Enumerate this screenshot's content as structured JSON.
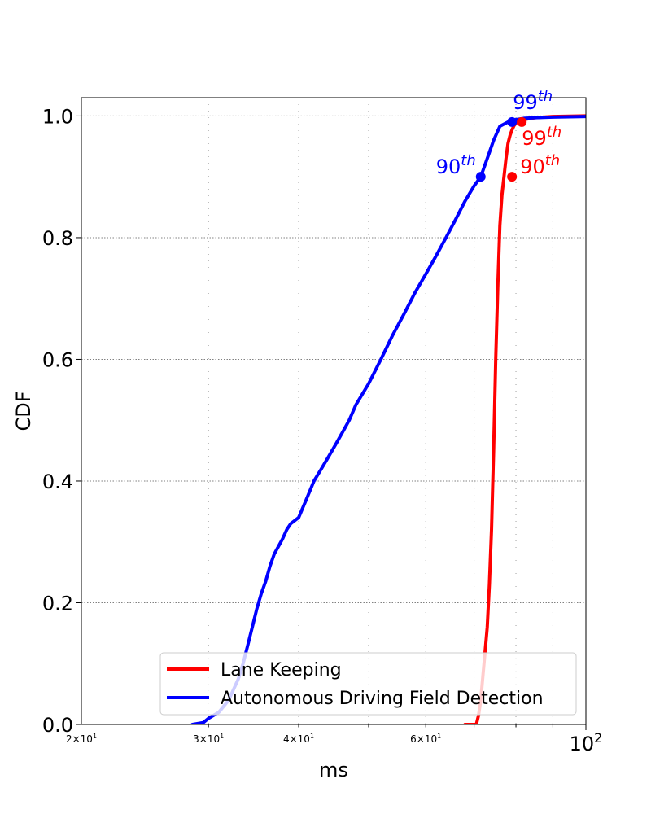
{
  "chart_data": {
    "type": "line",
    "title": "",
    "xlabel": "ms",
    "ylabel": "CDF",
    "xscale": "log",
    "xlim": [
      20,
      100
    ],
    "ylim": [
      0,
      1.03
    ],
    "grid": true,
    "legend_position": "lower-right",
    "x_ticks": [
      {
        "value": 20,
        "base": "2",
        "exp": "10",
        "pow": "1"
      },
      {
        "value": 30,
        "base": "3",
        "exp": "10",
        "pow": "1"
      },
      {
        "value": 40,
        "base": "4",
        "exp": "10",
        "pow": "1"
      },
      {
        "value": 60,
        "base": "6",
        "exp": "10",
        "pow": "1"
      },
      {
        "value": 100,
        "base": "",
        "exp": "10",
        "pow": "2"
      }
    ],
    "y_ticks": [
      {
        "value": 0,
        "label": "0.0"
      },
      {
        "value": 0.2,
        "label": "0.2"
      },
      {
        "value": 0.4,
        "label": "0.4"
      },
      {
        "value": 0.6,
        "label": "0.6"
      },
      {
        "value": 0.8,
        "label": "0.8"
      },
      {
        "value": 1.0,
        "label": "1.0"
      }
    ],
    "series": [
      {
        "name": "Lane Keeping",
        "color": "#ff0000",
        "x": [
          68,
          70.5,
          71.0,
          71.5,
          72.0,
          72.5,
          73.0,
          73.5,
          74.0,
          74.5,
          75.0,
          75.5,
          76.0,
          76.5,
          77.0,
          77.5,
          78.0,
          78.5,
          79.0,
          79.5,
          80.0,
          80.5,
          81.5,
          83,
          85,
          90,
          100
        ],
        "y": [
          0.0,
          0.0,
          0.015,
          0.04,
          0.08,
          0.12,
          0.16,
          0.23,
          0.32,
          0.45,
          0.6,
          0.72,
          0.82,
          0.87,
          0.9,
          0.93,
          0.955,
          0.968,
          0.977,
          0.984,
          0.988,
          0.99,
          0.993,
          0.995,
          0.997,
          0.999,
          1.0
        ]
      },
      {
        "name": "Autonomous Driving Field Detection",
        "color": "#0000ff",
        "x": [
          28.5,
          29.5,
          30.0,
          31.0,
          32.0,
          33.0,
          33.5,
          34.0,
          34.5,
          35.0,
          35.5,
          36.0,
          36.5,
          37.0,
          38.0,
          38.5,
          39.0,
          39.5,
          40.0,
          41.0,
          42.0,
          43.0,
          44.0,
          45.0,
          46.0,
          47.0,
          48.0,
          50.0,
          52.0,
          54.0,
          56.0,
          58.0,
          60.0,
          62.0,
          64.0,
          66.0,
          68.0,
          70.0,
          71.5,
          72.5,
          73.5,
          74.5,
          76.0,
          78.0,
          80.0,
          82.0,
          85.0,
          90.0,
          100.0
        ],
        "y": [
          0.0,
          0.003,
          0.01,
          0.02,
          0.04,
          0.075,
          0.1,
          0.13,
          0.16,
          0.19,
          0.215,
          0.235,
          0.26,
          0.28,
          0.305,
          0.32,
          0.33,
          0.335,
          0.34,
          0.37,
          0.4,
          0.42,
          0.44,
          0.46,
          0.48,
          0.5,
          0.525,
          0.56,
          0.6,
          0.64,
          0.675,
          0.71,
          0.74,
          0.77,
          0.8,
          0.83,
          0.86,
          0.885,
          0.9,
          0.92,
          0.94,
          0.96,
          0.983,
          0.99,
          0.994,
          0.996,
          0.997,
          0.998,
          0.999
        ]
      }
    ],
    "annotations": [
      {
        "series": "Lane Keeping",
        "x": 79.0,
        "y": 0.9,
        "base": "90",
        "sup": "th",
        "color": "#ff0000",
        "placement": "right"
      },
      {
        "series": "Lane Keeping",
        "x": 81.5,
        "y": 0.99,
        "base": "99",
        "sup": "th",
        "color": "#ff0000",
        "placement": "below-right"
      },
      {
        "series": "Autonomous Driving Field Detection",
        "x": 71.5,
        "y": 0.9,
        "base": "90",
        "sup": "th",
        "color": "#0000ff",
        "placement": "left"
      },
      {
        "series": "Autonomous Driving Field Detection",
        "x": 79.0,
        "y": 0.99,
        "base": "99",
        "sup": "th",
        "color": "#0000ff",
        "placement": "above"
      }
    ]
  }
}
